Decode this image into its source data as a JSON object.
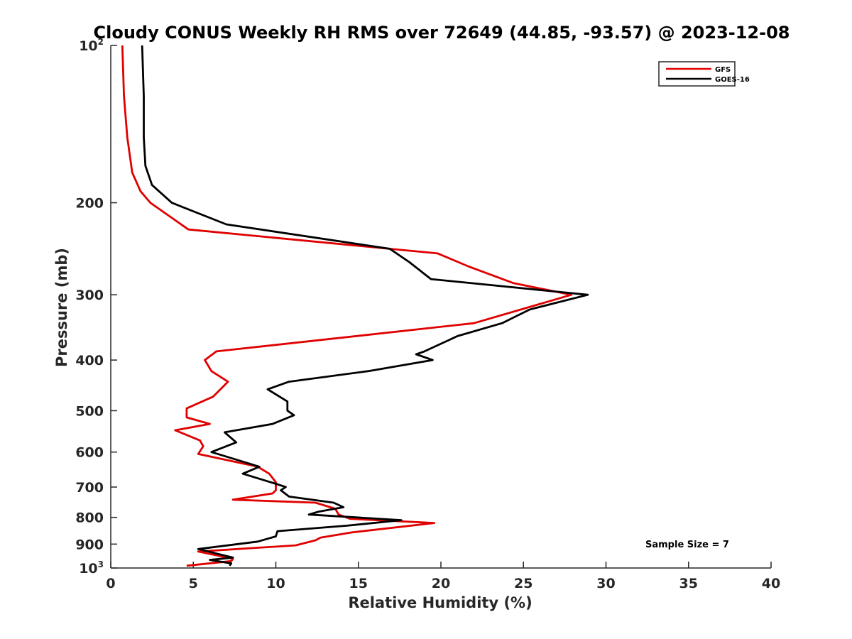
{
  "chart_data": {
    "type": "line",
    "title": "Cloudy CONUS Weekly RH RMS over 72649 (44.85, -93.57) @ 2023-12-08",
    "xlabel": "Relative Humidity (%)",
    "ylabel": "Pressure (mb)",
    "xlim": [
      0,
      40
    ],
    "ylim": [
      100,
      1000
    ],
    "y_scale": "log",
    "y_reversed": true,
    "x_ticks": [
      "0",
      "5",
      "10",
      "15",
      "20",
      "25",
      "30",
      "35",
      "40"
    ],
    "y_ticks": [
      {
        "value": 100,
        "base": "10",
        "exp": "2"
      },
      {
        "value": 200,
        "label": "200"
      },
      {
        "value": 300,
        "label": "300"
      },
      {
        "value": 400,
        "label": "400"
      },
      {
        "value": 500,
        "label": "500"
      },
      {
        "value": 600,
        "label": "600"
      },
      {
        "value": 700,
        "label": "700"
      },
      {
        "value": 800,
        "label": "800"
      },
      {
        "value": 900,
        "label": "900"
      },
      {
        "value": 1000,
        "base": "10",
        "exp": "3"
      }
    ],
    "grid": false,
    "legend_position": "top-right",
    "annotation": "Sample Size = 7",
    "series": [
      {
        "name": "GFS",
        "color": "#e00000",
        "points": [
          [
            0.7,
            100
          ],
          [
            0.8,
            125
          ],
          [
            1.0,
            150
          ],
          [
            1.3,
            175
          ],
          [
            1.8,
            190
          ],
          [
            2.4,
            200
          ],
          [
            4.7,
            225
          ],
          [
            19.8,
            250
          ],
          [
            21.7,
            265
          ],
          [
            24.4,
            285
          ],
          [
            27.9,
            300
          ],
          [
            22.0,
            340
          ],
          [
            6.4,
            385
          ],
          [
            5.7,
            400
          ],
          [
            6.1,
            420
          ],
          [
            7.1,
            440
          ],
          [
            6.2,
            470
          ],
          [
            4.6,
            495
          ],
          [
            4.6,
            515
          ],
          [
            6.0,
            530
          ],
          [
            3.9,
            545
          ],
          [
            5.4,
            570
          ],
          [
            5.6,
            585
          ],
          [
            5.3,
            605
          ],
          [
            8.9,
            640
          ],
          [
            9.6,
            660
          ],
          [
            10.0,
            685
          ],
          [
            10.0,
            710
          ],
          [
            9.8,
            720
          ],
          [
            7.4,
            740
          ],
          [
            12.4,
            750
          ],
          [
            13.6,
            770
          ],
          [
            13.8,
            790
          ],
          [
            14.5,
            805
          ],
          [
            19.6,
            820
          ],
          [
            14.6,
            855
          ],
          [
            12.7,
            875
          ],
          [
            12.4,
            885
          ],
          [
            11.2,
            905
          ],
          [
            5.3,
            930
          ],
          [
            7.4,
            960
          ],
          [
            7.3,
            970
          ],
          [
            4.6,
            990
          ]
        ]
      },
      {
        "name": "GOES-16",
        "color": "#000000",
        "points": [
          [
            1.9,
            100
          ],
          [
            2.0,
            125
          ],
          [
            2.0,
            150
          ],
          [
            2.1,
            170
          ],
          [
            2.5,
            185
          ],
          [
            3.7,
            200
          ],
          [
            7.0,
            220
          ],
          [
            16.9,
            245
          ],
          [
            18.1,
            260
          ],
          [
            19.4,
            280
          ],
          [
            28.9,
            300
          ],
          [
            25.4,
            320
          ],
          [
            23.7,
            340
          ],
          [
            21.0,
            360
          ],
          [
            19.0,
            385
          ],
          [
            18.5,
            390
          ],
          [
            19.5,
            400
          ],
          [
            15.6,
            420
          ],
          [
            10.8,
            440
          ],
          [
            9.5,
            455
          ],
          [
            10.7,
            480
          ],
          [
            10.7,
            500
          ],
          [
            11.1,
            510
          ],
          [
            9.8,
            530
          ],
          [
            6.9,
            550
          ],
          [
            7.6,
            575
          ],
          [
            6.1,
            600
          ],
          [
            9.0,
            640
          ],
          [
            8.0,
            660
          ],
          [
            10.0,
            690
          ],
          [
            10.6,
            700
          ],
          [
            10.3,
            710
          ],
          [
            10.8,
            730
          ],
          [
            13.5,
            750
          ],
          [
            14.1,
            765
          ],
          [
            12.6,
            780
          ],
          [
            12.0,
            790
          ],
          [
            17.6,
            810
          ],
          [
            14.3,
            830
          ],
          [
            10.1,
            850
          ],
          [
            10.0,
            870
          ],
          [
            8.9,
            890
          ],
          [
            5.3,
            920
          ],
          [
            7.4,
            955
          ],
          [
            6.0,
            965
          ],
          [
            7.3,
            980
          ],
          [
            7.2,
            990
          ]
        ]
      }
    ]
  }
}
